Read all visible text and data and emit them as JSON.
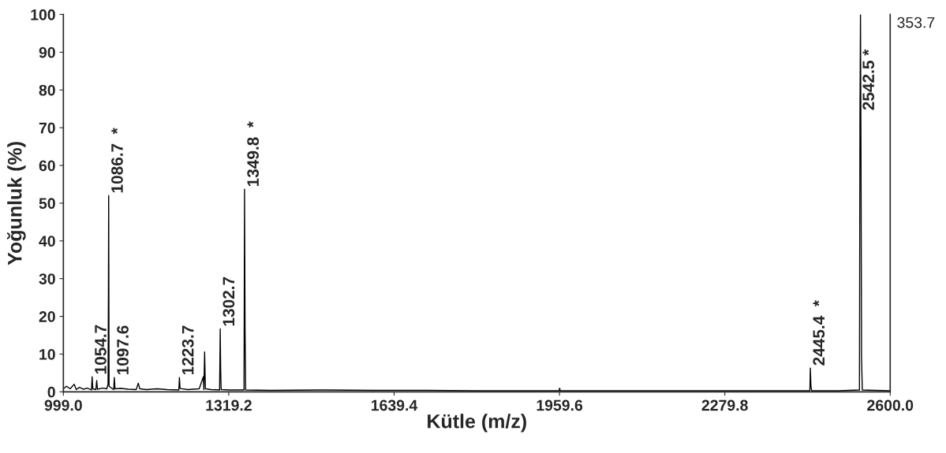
{
  "chart_data": {
    "type": "line",
    "xlabel": "Kütle (m/z)",
    "ylabel": "Yoğunluk (%)",
    "series": [
      {
        "color": "#000000",
        "x": [
          999,
          1005,
          1012,
          1020,
          1024,
          1030,
          1038,
          1045,
          1053.5,
          1054.7,
          1056,
          1062,
          1063.5,
          1065,
          1075,
          1083,
          1085.5,
          1086.2,
          1086.7,
          1087.5,
          1092,
          1096.5,
          1097.6,
          1099,
          1110,
          1125,
          1140,
          1144,
          1147,
          1160,
          1180,
          1200,
          1222.5,
          1223.7,
          1225,
          1240,
          1262,
          1270,
          1271,
          1272.5,
          1274,
          1285,
          1301.5,
          1302.7,
          1303.5,
          1304.5,
          1320,
          1340,
          1348.8,
          1349.3,
          1349.8,
          1350.8,
          1352,
          1400,
          1500,
          1600,
          1700,
          1800,
          1959,
          1960,
          1961,
          2100,
          2200,
          2300,
          2444.5,
          2445.4,
          2446.5,
          2448,
          2500,
          2540.5,
          2541.5,
          2542.5,
          2543.5,
          2544.5,
          2546,
          2570,
          2600
        ],
        "values": [
          0.8,
          1.5,
          0.8,
          2.0,
          0.6,
          1.2,
          0.7,
          1.0,
          0.5,
          4.0,
          0.8,
          0.6,
          3.0,
          0.7,
          1.0,
          0.8,
          2.0,
          26,
          52,
          1.5,
          1.0,
          0.6,
          3.8,
          0.8,
          0.9,
          0.7,
          0.6,
          2.3,
          0.8,
          0.6,
          0.8,
          0.6,
          0.5,
          3.8,
          0.9,
          0.6,
          0.8,
          4.0,
          0.6,
          10.6,
          0.8,
          0.6,
          0.5,
          16.7,
          6.3,
          0.6,
          0.5,
          0.5,
          0.5,
          26.7,
          53.7,
          16,
          0.5,
          0.4,
          0.5,
          0.4,
          0.4,
          0.3,
          0.3,
          1.0,
          0.3,
          0.3,
          0.3,
          0.3,
          0.3,
          6.3,
          1.5,
          0.3,
          0.3,
          0.5,
          74,
          100,
          62,
          9.4,
          0.5,
          0.4,
          0.3
        ]
      }
    ],
    "xlim": [
      999.0,
      2600.0
    ],
    "xticks": [
      {
        "value": 999.0,
        "label": "999.0"
      },
      {
        "value": 1319.2,
        "label": "1319.2"
      },
      {
        "value": 1639.4,
        "label": "1639.4"
      },
      {
        "value": 1959.6,
        "label": "1959.6"
      },
      {
        "value": 2279.8,
        "label": "2279.8"
      },
      {
        "value": 2600.0,
        "label": "2600.0"
      }
    ],
    "ylim": [
      0,
      100
    ],
    "yticks": [
      0,
      10,
      20,
      30,
      40,
      50,
      60,
      70,
      80,
      90,
      100
    ],
    "grid": false,
    "legend": false,
    "line_style": "solid",
    "marker": "none",
    "annotations": [
      {
        "text": "1054.7",
        "x": 1054.7,
        "y": 4.0
      },
      {
        "text": "1086.7  *",
        "x": 1086.7,
        "y": 52
      },
      {
        "text": "1097.6",
        "x": 1097.6,
        "y": 3.8
      },
      {
        "text": "1223.7",
        "x": 1223.7,
        "y": 3.8
      },
      {
        "text": "1302.7",
        "x": 1302.7,
        "y": 16.7
      },
      {
        "text": "1349.8  *",
        "x": 1349.8,
        "y": 53.7
      },
      {
        "text": "2445.4  *",
        "x": 2445.4,
        "y": 6.3
      },
      {
        "text": "2542.5 *",
        "x": 2541.5,
        "y": 74
      },
      "353.7"
    ]
  }
}
